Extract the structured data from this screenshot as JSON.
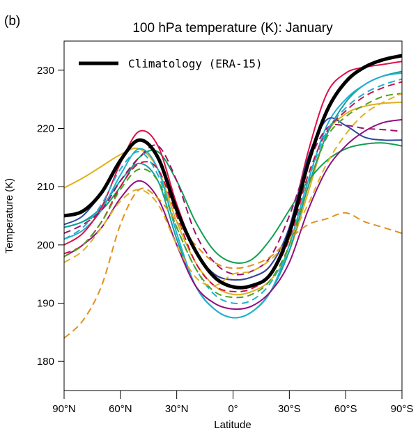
{
  "chart_data": {
    "type": "line",
    "panel_label": "(b)",
    "title": "100 hPa temperature (K): January",
    "xlabel": "Latitude",
    "ylabel": "Temperature (K)",
    "xlim": [
      90,
      -90
    ],
    "ylim": [
      175,
      235
    ],
    "grid": false,
    "x_ticks": [
      {
        "value": 90,
        "label": "90°N"
      },
      {
        "value": 60,
        "label": "60°N"
      },
      {
        "value": 30,
        "label": "30°N"
      },
      {
        "value": 0,
        "label": "0°"
      },
      {
        "value": -30,
        "label": "30°S"
      },
      {
        "value": -60,
        "label": "60°S"
      },
      {
        "value": -90,
        "label": "90°S"
      }
    ],
    "y_ticks": [
      {
        "value": 180,
        "label": "180"
      },
      {
        "value": 190,
        "label": "190"
      },
      {
        "value": 200,
        "label": "200"
      },
      {
        "value": 210,
        "label": "210"
      },
      {
        "value": 220,
        "label": "220"
      },
      {
        "value": 230,
        "label": "230"
      }
    ],
    "legend": {
      "position": "top-left",
      "entries": [
        {
          "label": "Climatology (ERA-15)",
          "color": "#000000"
        }
      ]
    },
    "x": [
      90,
      80,
      70,
      60,
      50,
      40,
      30,
      20,
      10,
      0,
      -10,
      -20,
      -30,
      -40,
      -50,
      -60,
      -70,
      -80,
      -90
    ],
    "series": [
      {
        "name": "model-yellow-solid",
        "color": "#e0b020",
        "dash": false,
        "values": [
          209.8,
          211.5,
          213.5,
          215.5,
          216.5,
          213,
          204,
          197,
          193,
          191.5,
          192,
          194,
          199,
          209,
          219,
          222.5,
          223.8,
          224.3,
          224.5
        ]
      },
      {
        "name": "model-green-solid",
        "color": "#10a050",
        "dash": false,
        "values": [
          203,
          204,
          206,
          210,
          215,
          216,
          211,
          204,
          199,
          197,
          197.5,
          201,
          206,
          211,
          214.5,
          216.5,
          217.3,
          217.5,
          217
        ]
      },
      {
        "name": "model-teal-solid",
        "color": "#10a0a0",
        "dash": false,
        "values": [
          203,
          204,
          206.5,
          211,
          214,
          211,
          201,
          193,
          189,
          187.5,
          188.5,
          192,
          199,
          210,
          219,
          224.5,
          227.5,
          229,
          229.8
        ]
      },
      {
        "name": "model-cyan-solid",
        "color": "#20b0d0",
        "dash": false,
        "values": [
          201,
          202.5,
          206,
          212,
          216.5,
          213,
          202,
          193,
          189,
          187.5,
          188.5,
          192,
          200,
          211,
          220.5,
          225,
          227.5,
          229,
          229.5
        ]
      },
      {
        "name": "model-red-solid",
        "color": "#e0104a",
        "dash": false,
        "values": [
          200,
          202,
          206.5,
          214,
          219.5,
          217,
          207,
          199,
          195,
          194,
          194.5,
          196.5,
          203,
          216,
          226,
          229.5,
          230.5,
          231,
          231.5
        ]
      },
      {
        "name": "model-navy-solid",
        "color": "#2a4aa0",
        "dash": false,
        "values": [
          203.5,
          205,
          209,
          214.5,
          218,
          215,
          206,
          199,
          195,
          194,
          194.5,
          196.5,
          203,
          215,
          221.5,
          220.5,
          218.5,
          218,
          218
        ]
      },
      {
        "name": "model-purple-solid",
        "color": "#901080",
        "dash": false,
        "values": [
          198,
          200,
          203,
          208,
          211,
          208,
          200,
          193,
          190,
          189,
          189.5,
          192,
          197,
          206,
          213,
          217,
          219.5,
          221,
          221.5
        ]
      },
      {
        "name": "model-purple-dashed",
        "color": "#a01070",
        "dash": true,
        "values": [
          202,
          203.5,
          206,
          211,
          215,
          217,
          211,
          202,
          197,
          195,
          195.5,
          198,
          205,
          214,
          220,
          220.5,
          220,
          219.8,
          219.5
        ]
      },
      {
        "name": "model-red-dashed",
        "color": "#d0104a",
        "dash": true,
        "values": [
          198.5,
          200,
          204,
          210,
          214,
          213,
          205,
          197,
          193,
          192,
          192.5,
          195,
          201,
          212,
          219.5,
          223,
          225.5,
          227,
          228
        ]
      },
      {
        "name": "model-cyan-dashed",
        "color": "#20b0d0",
        "dash": true,
        "values": [
          201,
          203,
          207,
          213,
          216,
          212,
          203,
          196,
          191.5,
          190,
          190.5,
          193.5,
          200,
          211,
          219.5,
          223.5,
          226,
          227.5,
          228.5
        ]
      },
      {
        "name": "model-green-dashed",
        "color": "#50a020",
        "dash": true,
        "values": [
          198,
          200,
          204,
          209.5,
          213,
          211,
          203,
          196,
          192,
          191,
          191.5,
          194,
          200,
          210,
          218.5,
          222,
          224,
          225.5,
          226
        ]
      },
      {
        "name": "model-yellow-dashed",
        "color": "#e0b020",
        "dash": true,
        "values": [
          197,
          199,
          203,
          207.5,
          209.5,
          207,
          200,
          194.5,
          193,
          195,
          195.5,
          197.5,
          201,
          207,
          214,
          219,
          222.5,
          224.5,
          226
        ]
      },
      {
        "name": "model-orange-dashed",
        "color": "#e09020",
        "dash": true,
        "values": [
          184,
          187,
          193,
          203.5,
          209.5,
          208,
          204,
          200,
          197,
          196,
          196.5,
          198,
          201,
          203.5,
          204.5,
          205.5,
          204,
          203,
          202
        ]
      },
      {
        "name": "Climatology (ERA-15)",
        "color": "#000000",
        "dash": false,
        "thick": true,
        "values": [
          205,
          205.8,
          209,
          214.5,
          218,
          215,
          206,
          199,
          194.5,
          192.8,
          193,
          195,
          202,
          214,
          223,
          228,
          230.5,
          231.8,
          232.5
        ]
      }
    ]
  }
}
